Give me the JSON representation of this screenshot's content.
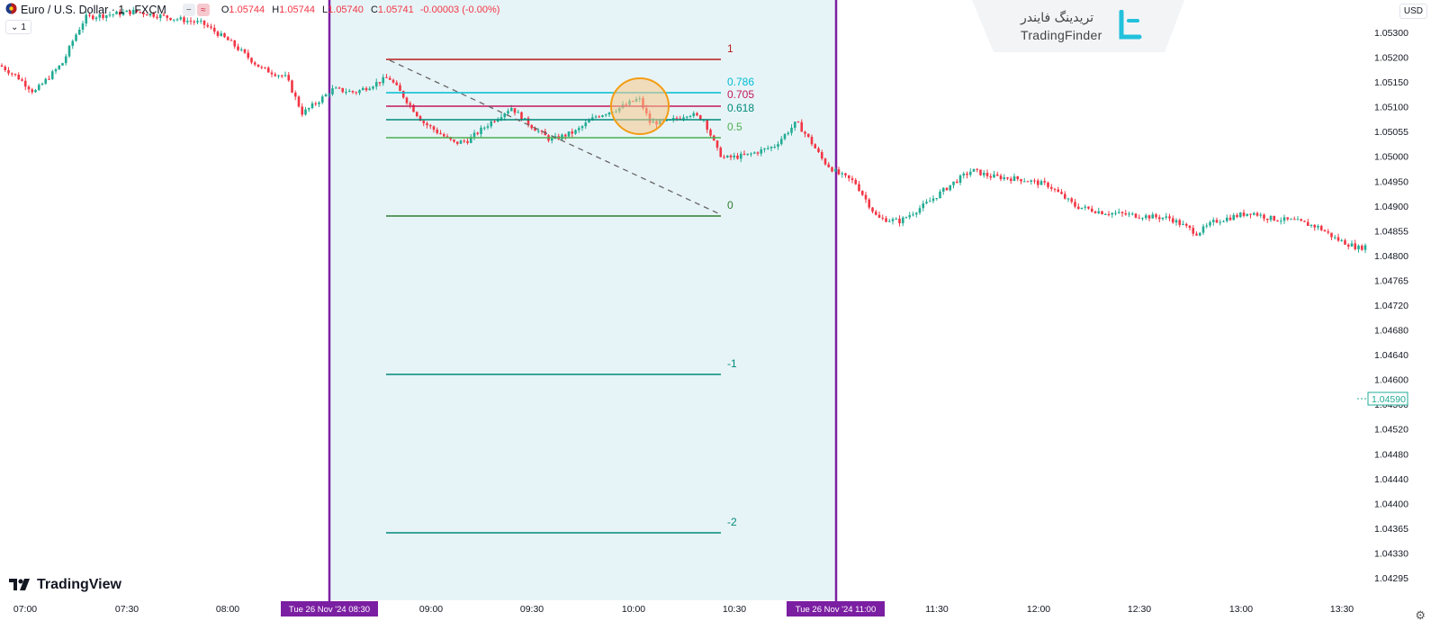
{
  "header": {
    "symbol": "Euro / U.S. Dollar · 1 · FXCM",
    "ohlc": {
      "o_label": "O",
      "o": "1.05744",
      "h_label": "H",
      "h": "1.05744",
      "l_label": "L",
      "l": "1.05740",
      "c_label": "C",
      "c": "1.05741",
      "change": "-0.00003 (-0.00%)"
    },
    "interval_badge": "1",
    "currency": "USD"
  },
  "branding": {
    "partner_name_fa": "تریدینگ فایندر",
    "partner_name_en": "TradingFinder",
    "platform": "TradingView"
  },
  "price_axis": {
    "ticks": [
      "1.05300",
      "1.05200",
      "1.05150",
      "1.05100",
      "1.05055",
      "1.05000",
      "1.04950",
      "1.04900",
      "1.04855",
      "1.04800",
      "1.04765",
      "1.04720",
      "1.04680",
      "1.04640",
      "1.04600",
      "1.04560",
      "1.04520",
      "1.04480",
      "1.04440",
      "1.04400",
      "1.04365",
      "1.04330",
      "1.04295"
    ],
    "current_price": "1.04590",
    "current_color": "#22ab94"
  },
  "time_axis": {
    "ticks": [
      "07:00",
      "07:30",
      "08:00",
      "09:00",
      "09:30",
      "10:00",
      "10:30",
      "11:30",
      "12:00",
      "12:30",
      "13:00",
      "13:30"
    ],
    "range_start_label": "Tue 26 Nov '24  08:30",
    "range_end_label": "Tue 26 Nov '24  11:00"
  },
  "session_range": {
    "fill_color": "#e7f4f7",
    "border_color": "#7b1fa2"
  },
  "fibonacci": {
    "levels": [
      {
        "label": "1",
        "color": "#b71c1c"
      },
      {
        "label": "0.786",
        "color": "#00bcd4"
      },
      {
        "label": "0.705",
        "color": "#c2185b"
      },
      {
        "label": "0.618",
        "color": "#00897b"
      },
      {
        "label": "0.5",
        "color": "#4caf50"
      },
      {
        "label": "0",
        "color": "#2e7d32"
      },
      {
        "label": "-1",
        "color": "#00897b"
      },
      {
        "label": "-2",
        "color": "#00897b"
      }
    ]
  },
  "candle_colors": {
    "up": "#22ab94",
    "down": "#f23645"
  },
  "highlight": {
    "fill": "#f7c98a",
    "stroke": "#f39c12"
  },
  "icons": [
    "euro-usd-flag-icon",
    "chevron-down-icon",
    "tradingfinder-logo-icon",
    "tradingview-logo-icon",
    "settings-gear-icon"
  ]
}
